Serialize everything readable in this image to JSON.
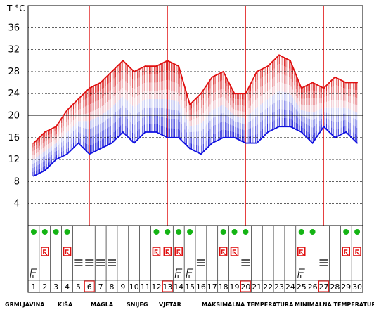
{
  "chart_data": {
    "type": "area",
    "unit_label": "T °C",
    "y_ticks": [
      4,
      8,
      12,
      16,
      20,
      24,
      28,
      32,
      36
    ],
    "ylim": [
      0,
      40
    ],
    "days": [
      1,
      2,
      3,
      4,
      5,
      6,
      7,
      8,
      9,
      10,
      11,
      12,
      13,
      14,
      15,
      16,
      17,
      18,
      19,
      20,
      21,
      22,
      23,
      24,
      25,
      26,
      27,
      28,
      29,
      30
    ],
    "highlighted_days": [
      6,
      13,
      20,
      27
    ],
    "series": [
      {
        "name": "MAKSIMALNA TEMPERATURA",
        "color": "#e01010",
        "values": [
          15,
          17,
          18,
          21,
          23,
          25,
          26,
          28,
          30,
          28,
          29,
          29,
          30,
          29,
          22,
          24,
          27,
          28,
          24,
          24,
          28,
          29,
          31,
          30,
          25,
          26,
          25,
          27,
          26,
          26
        ]
      },
      {
        "name": "MINIMALNA TEMPERATURA",
        "color": "#1010e0",
        "values": [
          9,
          10,
          12,
          13,
          15,
          13,
          14,
          15,
          17,
          15,
          17,
          17,
          16,
          16,
          14,
          13,
          15,
          16,
          16,
          15,
          15,
          17,
          18,
          18,
          17,
          15,
          18,
          16,
          17,
          15
        ]
      }
    ],
    "weather": {
      "thunderstorm": [
        1,
        14,
        15,
        25
      ],
      "rain": [
        2,
        4,
        12,
        13,
        14,
        18,
        19,
        25,
        29,
        30
      ],
      "fog": [
        5,
        6,
        7,
        8,
        16,
        20,
        27
      ],
      "snow": [],
      "wind": [
        1,
        2,
        3,
        4,
        12,
        13,
        14,
        15,
        18,
        19,
        20,
        25,
        26,
        29,
        30
      ]
    }
  },
  "legend": {
    "thunderstorm": "GRMLJAVINA",
    "rain": "KIŠA",
    "fog": "MAGLA",
    "snow": "SNIJEG",
    "wind": "VJETAR",
    "max": "MAKSIMALNA TEMPERATURA",
    "min": "MINIMALNA TEMPERATURA"
  },
  "colors": {
    "grid": "#000000",
    "highlight": "#e01010",
    "wind_dot": "#14b414",
    "max_line": "#e01010",
    "min_line": "#1010e0"
  }
}
